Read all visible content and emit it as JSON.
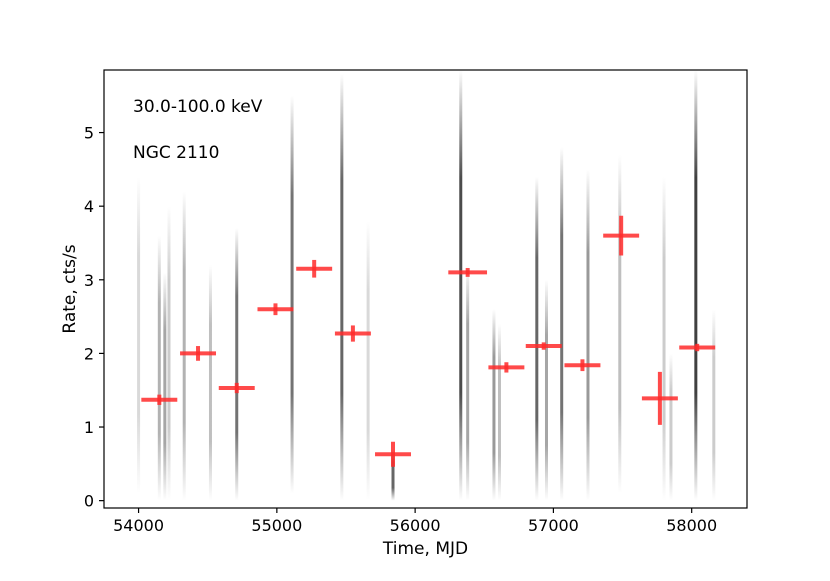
{
  "chart_data": {
    "type": "scatter",
    "title": "",
    "xlabel": "Time, MJD",
    "ylabel": "Rate, cts/s",
    "xlim": [
      53750,
      58400
    ],
    "ylim": [
      -0.1,
      5.85
    ],
    "xticks": [
      54000,
      55000,
      56000,
      57000,
      58000
    ],
    "yticks": [
      0,
      1,
      2,
      3,
      4,
      5
    ],
    "grid": false,
    "annotations": [
      "30.0-100.0 keV",
      "NGC 2110"
    ],
    "series": [
      {
        "style": "errorbar",
        "color": "#ff2a2a",
        "points": [
          {
            "x": 54150,
            "y": 1.37,
            "xerr": 130,
            "yerr": 0.07
          },
          {
            "x": 54430,
            "y": 2.0,
            "xerr": 130,
            "yerr": 0.1
          },
          {
            "x": 54710,
            "y": 1.53,
            "xerr": 130,
            "yerr": 0.07
          },
          {
            "x": 54990,
            "y": 2.6,
            "xerr": 130,
            "yerr": 0.08
          },
          {
            "x": 55270,
            "y": 3.15,
            "xerr": 130,
            "yerr": 0.12
          },
          {
            "x": 55550,
            "y": 2.27,
            "xerr": 130,
            "yerr": 0.11
          },
          {
            "x": 55840,
            "y": 0.63,
            "xerr": 130,
            "yerr": 0.17
          },
          {
            "x": 56380,
            "y": 3.1,
            "xerr": 140,
            "yerr": 0.06
          },
          {
            "x": 56660,
            "y": 1.81,
            "xerr": 130,
            "yerr": 0.07
          },
          {
            "x": 56930,
            "y": 2.1,
            "xerr": 130,
            "yerr": 0.05
          },
          {
            "x": 57210,
            "y": 1.84,
            "xerr": 130,
            "yerr": 0.08
          },
          {
            "x": 57490,
            "y": 3.6,
            "xerr": 130,
            "yerr": 0.27
          },
          {
            "x": 57770,
            "y": 1.39,
            "xerr": 130,
            "yerr": 0.36
          },
          {
            "x": 58040,
            "y": 2.08,
            "xerr": 130,
            "yerr": 0.05
          }
        ]
      },
      {
        "style": "vertical-streaks",
        "color": "#000000",
        "streaks": [
          {
            "x": 54000,
            "y0": 0.1,
            "y1": 4.4,
            "darkness": 0.15
          },
          {
            "x": 54150,
            "y0": 0.0,
            "y1": 3.6,
            "darkness": 0.3
          },
          {
            "x": 54190,
            "y0": 0.0,
            "y1": 3.1,
            "darkness": 0.35
          },
          {
            "x": 54220,
            "y0": 0.0,
            "y1": 4.0,
            "darkness": 0.2
          },
          {
            "x": 54330,
            "y0": 0.0,
            "y1": 4.2,
            "darkness": 0.3
          },
          {
            "x": 54520,
            "y0": 0.0,
            "y1": 3.2,
            "darkness": 0.25
          },
          {
            "x": 54710,
            "y0": 0.0,
            "y1": 3.7,
            "darkness": 0.55
          },
          {
            "x": 55110,
            "y0": 0.1,
            "y1": 5.5,
            "darkness": 0.55
          },
          {
            "x": 55470,
            "y0": 0.0,
            "y1": 5.8,
            "darkness": 0.6
          },
          {
            "x": 55660,
            "y0": 0.0,
            "y1": 3.8,
            "darkness": 0.15
          },
          {
            "x": 55840,
            "y0": 0.0,
            "y1": 0.7,
            "darkness": 0.6
          },
          {
            "x": 56330,
            "y0": 0.0,
            "y1": 5.85,
            "darkness": 0.7
          },
          {
            "x": 56380,
            "y0": 0.0,
            "y1": 3.2,
            "darkness": 0.35
          },
          {
            "x": 56570,
            "y0": 0.0,
            "y1": 2.6,
            "darkness": 0.4
          },
          {
            "x": 56610,
            "y0": 0.0,
            "y1": 2.4,
            "darkness": 0.25
          },
          {
            "x": 56880,
            "y0": 0.0,
            "y1": 4.4,
            "darkness": 0.6
          },
          {
            "x": 56950,
            "y0": 0.0,
            "y1": 3.0,
            "darkness": 0.35
          },
          {
            "x": 57060,
            "y0": 0.0,
            "y1": 4.8,
            "darkness": 0.55
          },
          {
            "x": 57250,
            "y0": 0.0,
            "y1": 4.5,
            "darkness": 0.4
          },
          {
            "x": 57480,
            "y0": 0.1,
            "y1": 4.7,
            "darkness": 0.25
          },
          {
            "x": 57800,
            "y0": 0.0,
            "y1": 4.4,
            "darkness": 0.2
          },
          {
            "x": 57850,
            "y0": 0.0,
            "y1": 2.0,
            "darkness": 0.2
          },
          {
            "x": 58030,
            "y0": 0.0,
            "y1": 5.85,
            "darkness": 0.75
          },
          {
            "x": 58160,
            "y0": 0.0,
            "y1": 2.6,
            "darkness": 0.2
          }
        ]
      }
    ]
  }
}
